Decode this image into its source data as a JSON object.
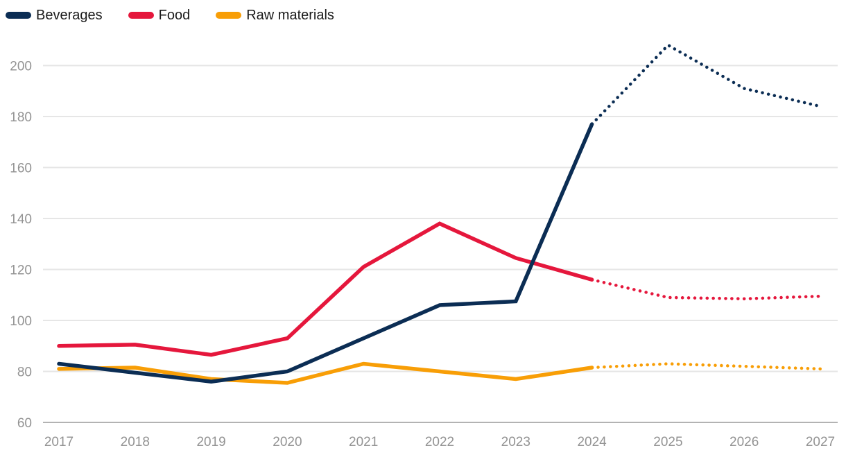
{
  "chart_data": {
    "type": "line",
    "title": "",
    "xlabel": "",
    "ylabel": "",
    "x": [
      "2017",
      "2018",
      "2019",
      "2020",
      "2021",
      "2022",
      "2023",
      "2024",
      "2025",
      "2026",
      "2027"
    ],
    "series": [
      {
        "name": "Beverages",
        "color": "#0b2d54",
        "values": [
          83,
          79.5,
          76,
          80,
          93,
          106,
          107.5,
          177,
          208,
          191,
          184
        ],
        "forecast_from_index": 7
      },
      {
        "name": "Food",
        "color": "#e5173c",
        "values": [
          90,
          90.5,
          86.5,
          93,
          121,
          138,
          124.5,
          116,
          109,
          108.5,
          109.5
        ],
        "forecast_from_index": 7
      },
      {
        "name": "Raw materials",
        "color": "#f89e06",
        "values": [
          81,
          81.5,
          77,
          75.5,
          83,
          80,
          77,
          81.5,
          83,
          82,
          81
        ],
        "forecast_from_index": 7
      }
    ],
    "yticks": [
      60,
      80,
      100,
      120,
      140,
      160,
      180,
      200
    ],
    "ylim": [
      60,
      212
    ],
    "grid": true,
    "gridline_color": "#e6e6e6",
    "baseline_color": "#b3b3b3",
    "tick_label_color": "#939393",
    "legend_position": "top-left",
    "forecast_style": "dotted"
  }
}
